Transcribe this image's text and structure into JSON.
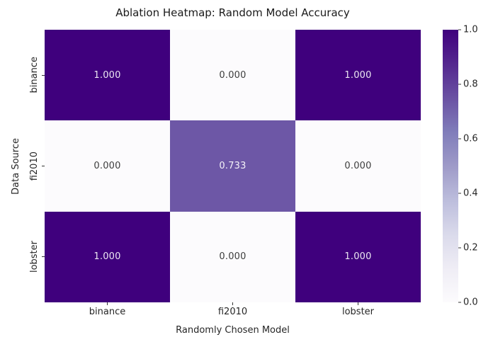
{
  "title": "Ablation Heatmap: Random Model Accuracy",
  "chart_data": {
    "type": "heatmap",
    "title": "Ablation Heatmap: Random Model Accuracy",
    "xlabel": "Randomly Chosen Model",
    "ylabel": "Data Source",
    "x_categories": [
      "binance",
      "fi2010",
      "lobster"
    ],
    "y_categories": [
      "binance",
      "fi2010",
      "lobster"
    ],
    "values": [
      [
        1.0,
        0.0,
        1.0
      ],
      [
        0.0,
        0.733,
        0.0
      ],
      [
        1.0,
        0.0,
        1.0
      ]
    ],
    "cell_labels": [
      [
        "1.000",
        "0.000",
        "1.000"
      ],
      [
        "0.000",
        "0.733",
        "0.000"
      ],
      [
        "1.000",
        "0.000",
        "1.000"
      ]
    ],
    "colormap": "Purples",
    "vmin": 0.0,
    "vmax": 1.0,
    "colorbar_tick_labels": [
      "1.0",
      "0.8",
      "0.6",
      "0.4",
      "0.2",
      "0.0"
    ],
    "legend_position": "right-colorbar",
    "grid": false
  },
  "colors": {
    "cell_colors": [
      [
        "#3f007d",
        "#fcfbfd",
        "#3f007d"
      ],
      [
        "#fcfbfd",
        "#6d57a6",
        "#fcfbfd"
      ],
      [
        "#3f007d",
        "#fcfbfd",
        "#3f007d"
      ]
    ],
    "cell_text_colors": [
      [
        "#ece7f2",
        "#3d3d3d",
        "#ece7f2"
      ],
      [
        "#3d3d3d",
        "#f4f2f8",
        "#3d3d3d"
      ],
      [
        "#ece7f2",
        "#3d3d3d",
        "#ece7f2"
      ]
    ],
    "colorbar_gradient_bottom_to_top": [
      "#fcfbfd",
      "#efedf5",
      "#dadaeb",
      "#bcbddc",
      "#9e9ac8",
      "#807dba",
      "#6a51a3",
      "#54278f",
      "#3f007d"
    ],
    "tick_color": "#333333",
    "text_color": "#262626",
    "background": "#ffffff"
  }
}
